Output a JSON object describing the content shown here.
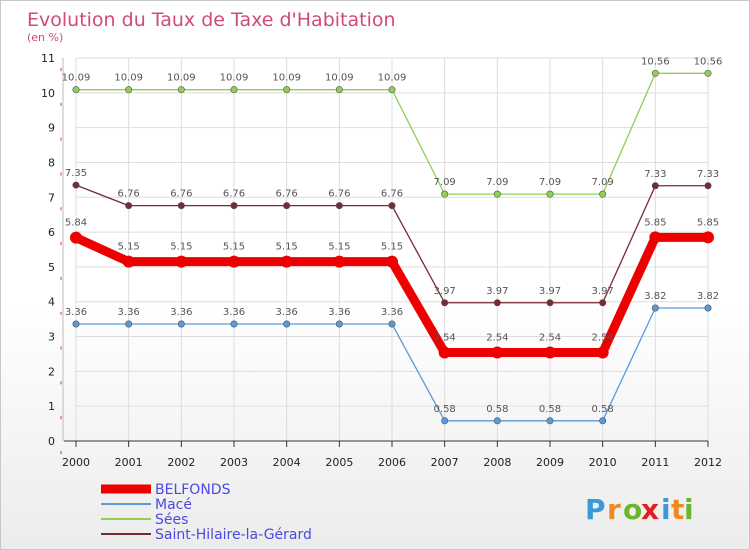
{
  "chart_data": {
    "type": "line",
    "title": "Evolution du Taux de Taxe d'Habitation",
    "subtitle": "(en %)",
    "x": [
      "2000",
      "2001",
      "2002",
      "2003",
      "2004",
      "2005",
      "2006",
      "2007",
      "2008",
      "2009",
      "2010",
      "2011",
      "2012"
    ],
    "y_ticks": [
      "0",
      "1",
      "2",
      "3",
      "4",
      "5",
      "6",
      "7",
      "8",
      "9",
      "10",
      "11"
    ],
    "ylim": [
      0,
      11
    ],
    "grid": true,
    "legend_position": "bottom-left",
    "series": [
      {
        "name": "Sées",
        "color": "#90d050",
        "values": [
          10.09,
          10.09,
          10.09,
          10.09,
          10.09,
          10.09,
          10.09,
          7.09,
          7.09,
          7.09,
          7.09,
          10.56,
          10.56
        ],
        "labels": [
          "10.09",
          "10.09",
          "10.09",
          "10.09",
          "10.09",
          "10.09",
          "10.09",
          "7.09",
          "7.09",
          "7.09",
          "7.09",
          "10.56",
          "10.56"
        ]
      },
      {
        "name": "Saint-Hilaire-la-Gérard",
        "color": "#7a2a32",
        "values": [
          7.35,
          6.76,
          6.76,
          6.76,
          6.76,
          6.76,
          6.76,
          3.97,
          3.97,
          3.97,
          3.97,
          7.33,
          7.33
        ],
        "labels": [
          "7.35",
          "6.76",
          "6.76",
          "6.76",
          "6.76",
          "6.76",
          "6.76",
          "3.97",
          "3.97",
          "3.97",
          "3.97",
          "7.33",
          "7.33"
        ]
      },
      {
        "name": "Macé",
        "color": "#5a9ad8",
        "values": [
          3.36,
          3.36,
          3.36,
          3.36,
          3.36,
          3.36,
          3.36,
          0.58,
          0.58,
          0.58,
          0.58,
          3.82,
          3.82
        ],
        "labels": [
          "3.36",
          "3.36",
          "3.36",
          "3.36",
          "3.36",
          "3.36",
          "3.36",
          "0.58",
          "0.58",
          "0.58",
          "0.58",
          "3.82",
          "3.82"
        ]
      },
      {
        "name": "BELFONDS",
        "color": "#ee0000",
        "bold": true,
        "values": [
          5.84,
          5.15,
          5.15,
          5.15,
          5.15,
          5.15,
          5.15,
          2.54,
          2.54,
          2.54,
          2.54,
          5.85,
          5.85
        ],
        "labels": [
          "5.84",
          "5.15",
          "5.15",
          "5.15",
          "5.15",
          "5.15",
          "5.15",
          "2.54",
          "2.54",
          "2.54",
          "2.54",
          "5.85",
          "5.85"
        ]
      }
    ],
    "legend": [
      {
        "name": "BELFONDS",
        "color": "#ee0000",
        "bold": true
      },
      {
        "name": "Macé",
        "color": "#5a9ad8"
      },
      {
        "name": "Sées",
        "color": "#90d050"
      },
      {
        "name": "Saint-Hilaire-la-Gérard",
        "color": "#7a2a32"
      }
    ],
    "legend_text_color": "#4a4ae0"
  },
  "brand": {
    "letters": [
      "P",
      "r",
      "o",
      "x",
      "i",
      "t",
      "i"
    ],
    "colors": [
      "#3a9ad8",
      "#f08a20",
      "#6ab82a",
      "#e02020",
      "#3a9ad8",
      "#f08a20",
      "#6ab82a"
    ]
  }
}
